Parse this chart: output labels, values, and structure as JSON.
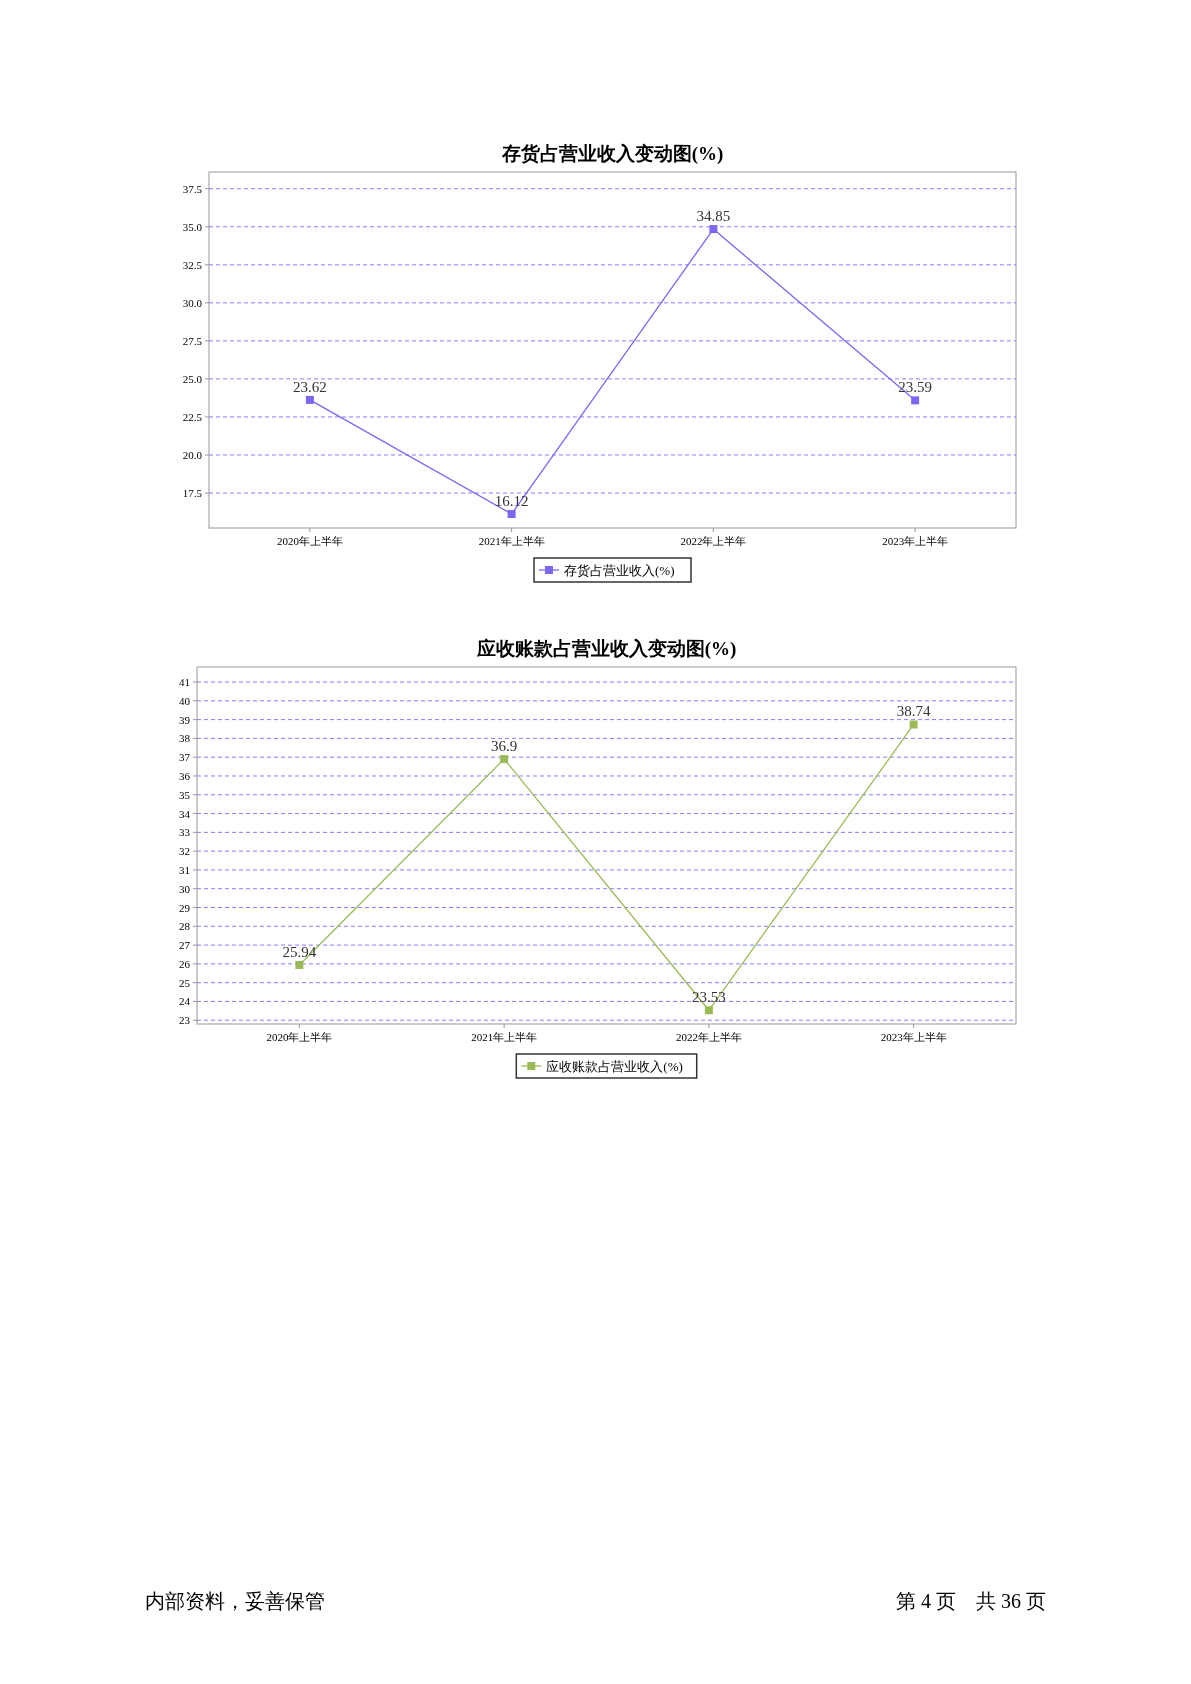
{
  "chart_data": [
    {
      "type": "line",
      "title": "存货占营业收入变动图(%)",
      "categories": [
        "2020年上半年",
        "2021年上半年",
        "2022年上半年",
        "2023年上半年"
      ],
      "series": [
        {
          "name": "存货占营业收入(%)",
          "color": "#7b68ee",
          "values": [
            23.62,
            16.12,
            34.85,
            23.59
          ]
        }
      ],
      "ylim": [
        15.2,
        38.6
      ],
      "yticks": [
        {
          "value": 17.5,
          "label": "17.5"
        },
        {
          "value": 20,
          "label": "20.0"
        },
        {
          "value": 22.5,
          "label": "22.5"
        },
        {
          "value": 25,
          "label": "25.0"
        },
        {
          "value": 27.5,
          "label": "27.5"
        },
        {
          "value": 30,
          "label": "30.0"
        },
        {
          "value": 32.5,
          "label": "32.5"
        },
        {
          "value": 35,
          "label": "35.0"
        },
        {
          "value": 37.5,
          "label": "37.5"
        }
      ],
      "grid": "y",
      "legend": "bottom",
      "marker": "square",
      "data_labels": true
    },
    {
      "type": "line",
      "title": "应收账款占营业收入变动图(%)",
      "categories": [
        "2020年上半年",
        "2021年上半年",
        "2022年上半年",
        "2023年上半年"
      ],
      "series": [
        {
          "name": "应收账款占营业收入(%)",
          "color": "#9bbb59",
          "values": [
            25.94,
            36.9,
            23.53,
            38.74
          ]
        }
      ],
      "ylim": [
        22.8,
        41.8
      ],
      "yticks": [
        23,
        24,
        25,
        26,
        27,
        28,
        29,
        30,
        31,
        32,
        33,
        34,
        35,
        36,
        37,
        38,
        39,
        40,
        41
      ],
      "grid": "y",
      "legend": "bottom",
      "marker": "square",
      "data_labels": true,
      "annotations": [
        "内部资料，妥善保管",
        "第 4 页　共 36 页"
      ]
    }
  ]
}
